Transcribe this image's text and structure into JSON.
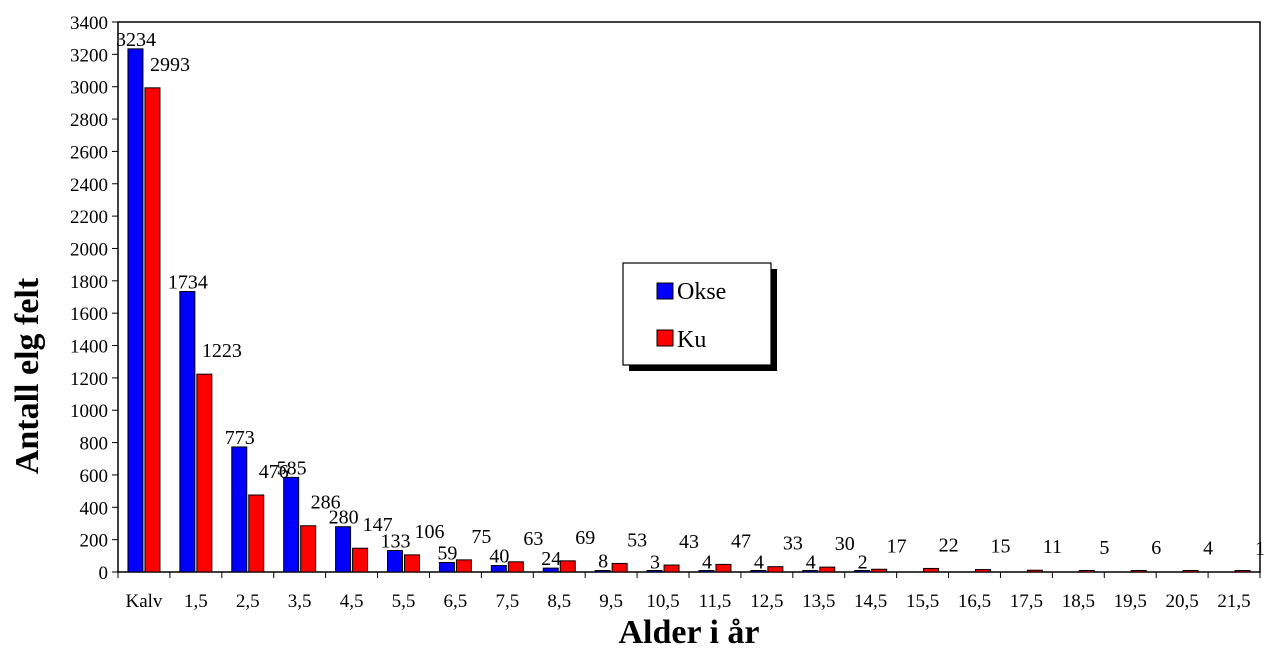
{
  "chart_data": {
    "type": "bar",
    "xlabel": "Alder i år",
    "ylabel": "Antall elg felt",
    "ylim": [
      0,
      3400
    ],
    "ytick_step": 200,
    "categories": [
      "Kalv",
      "1,5",
      "2,5",
      "3,5",
      "4,5",
      "5,5",
      "6,5",
      "7,5",
      "8,5",
      "9,5",
      "10,5",
      "11,5",
      "12,5",
      "13,5",
      "14,5",
      "15,5",
      "16,5",
      "17,5",
      "18,5",
      "19,5",
      "20,5",
      "21,5"
    ],
    "series": [
      {
        "name": "Okse",
        "color": "#0000ff",
        "values": [
          3234,
          1734,
          773,
          585,
          280,
          133,
          59,
          40,
          24,
          8,
          3,
          4,
          4,
          4,
          2,
          null,
          null,
          null,
          null,
          null,
          null,
          null
        ]
      },
      {
        "name": "Ku",
        "color": "#ff0000",
        "values": [
          2993,
          1223,
          476,
          286,
          147,
          106,
          75,
          63,
          69,
          53,
          43,
          47,
          33,
          30,
          17,
          22,
          15,
          11,
          5,
          6,
          4,
          1
        ]
      }
    ],
    "legend": "center-right",
    "grid": false
  }
}
